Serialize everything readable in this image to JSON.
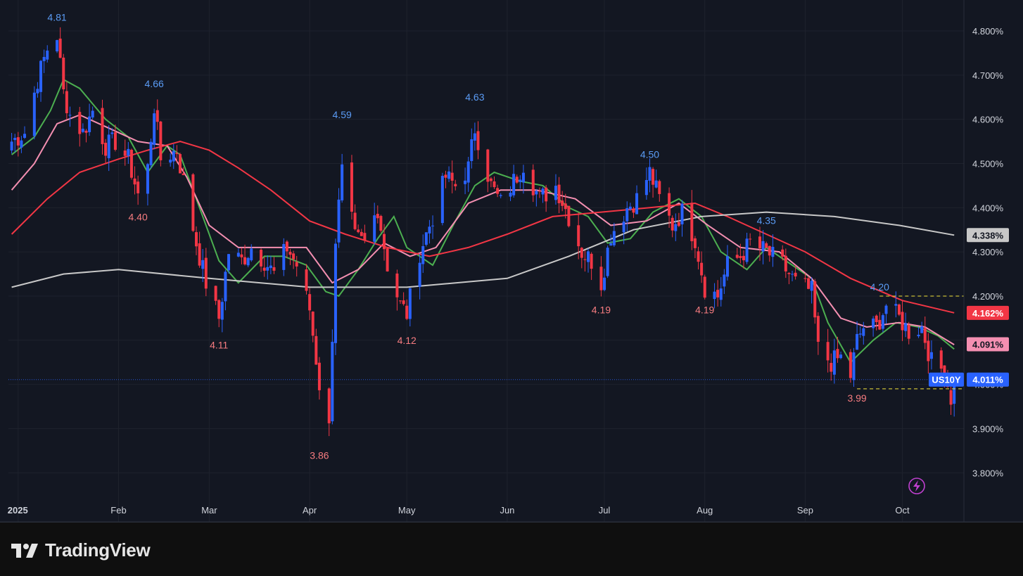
{
  "brand": {
    "name": "TradingView",
    "logo_icon": "tradingview-logo-icon"
  },
  "symbol": "US10Y",
  "last_price_label": "4.011%",
  "colors": {
    "background": "#131722",
    "grid": "#1e222d",
    "axis_text": "#d1d4dc",
    "up": "#2962ff",
    "down": "#f23645",
    "ma_fast": "#4caf50",
    "ma_mid": "#f48fb1",
    "ma_slow": "#f23645",
    "ma_long": "#c8c8c8",
    "high_label": "#5b9cf6",
    "low_label": "#f77c80",
    "level_line": "#f5e63b",
    "lightning": "#c040d0"
  },
  "chart_data": {
    "type": "candlestick",
    "y_unit": "%",
    "ylim": [
      3.74,
      4.87
    ],
    "y_ticks": [
      "4.800%",
      "4.700%",
      "4.600%",
      "4.500%",
      "4.400%",
      "4.300%",
      "4.200%",
      "4.100%",
      "4.000%",
      "3.900%",
      "3.800%"
    ],
    "y_tick_values": [
      4.8,
      4.7,
      4.6,
      4.5,
      4.4,
      4.3,
      4.2,
      4.1,
      4.0,
      3.9,
      3.8
    ],
    "x_ticks": [
      {
        "label": "2025",
        "date": "2025-01-01"
      },
      {
        "label": "Feb",
        "date": "2025-02-01"
      },
      {
        "label": "Mar",
        "date": "2025-03-01"
      },
      {
        "label": "Apr",
        "date": "2025-04-01"
      },
      {
        "label": "May",
        "date": "2025-05-01"
      },
      {
        "label": "Jun",
        "date": "2025-06-01"
      },
      {
        "label": "Jul",
        "date": "2025-07-01"
      },
      {
        "label": "Aug",
        "date": "2025-08-01"
      },
      {
        "label": "Sep",
        "date": "2025-09-01"
      },
      {
        "label": "Oct",
        "date": "2025-10-01"
      }
    ],
    "x_range": [
      "2024-12-29",
      "2025-10-20"
    ],
    "price_path": [
      [
        "2024-12-30",
        4.55
      ],
      [
        "2025-01-03",
        4.57
      ],
      [
        "2025-01-07",
        4.69
      ],
      [
        "2025-01-10",
        4.76
      ],
      [
        "2025-01-13",
        4.79
      ],
      [
        "2025-01-15",
        4.66
      ],
      [
        "2025-01-17",
        4.61
      ],
      [
        "2025-01-21",
        4.57
      ],
      [
        "2025-01-24",
        4.62
      ],
      [
        "2025-01-28",
        4.54
      ],
      [
        "2025-01-31",
        4.55
      ],
      [
        "2025-02-04",
        4.51
      ],
      [
        "2025-02-07",
        4.43
      ],
      [
        "2025-02-10",
        4.49
      ],
      [
        "2025-02-12",
        4.63
      ],
      [
        "2025-02-14",
        4.51
      ],
      [
        "2025-02-19",
        4.53
      ],
      [
        "2025-02-21",
        4.46
      ],
      [
        "2025-02-25",
        4.32
      ],
      [
        "2025-02-28",
        4.23
      ],
      [
        "2025-03-04",
        4.15
      ],
      [
        "2025-03-07",
        4.3
      ],
      [
        "2025-03-11",
        4.28
      ],
      [
        "2025-03-14",
        4.31
      ],
      [
        "2025-03-18",
        4.28
      ],
      [
        "2025-03-21",
        4.25
      ],
      [
        "2025-03-25",
        4.31
      ],
      [
        "2025-03-28",
        4.27
      ],
      [
        "2025-04-01",
        4.17
      ],
      [
        "2025-04-04",
        4.0
      ],
      [
        "2025-04-07",
        3.9
      ],
      [
        "2025-04-09",
        4.33
      ],
      [
        "2025-04-11",
        4.48
      ],
      [
        "2025-04-15",
        4.33
      ],
      [
        "2025-04-18",
        4.32
      ],
      [
        "2025-04-22",
        4.4
      ],
      [
        "2025-04-25",
        4.27
      ],
      [
        "2025-04-29",
        4.18
      ],
      [
        "2025-05-01",
        4.16
      ],
      [
        "2025-05-05",
        4.3
      ],
      [
        "2025-05-09",
        4.38
      ],
      [
        "2025-05-13",
        4.47
      ],
      [
        "2025-05-16",
        4.45
      ],
      [
        "2025-05-20",
        4.49
      ],
      [
        "2025-05-22",
        4.58
      ],
      [
        "2025-05-27",
        4.45
      ],
      [
        "2025-05-30",
        4.41
      ],
      [
        "2025-06-03",
        4.46
      ],
      [
        "2025-06-06",
        4.5
      ],
      [
        "2025-06-11",
        4.42
      ],
      [
        "2025-06-16",
        4.45
      ],
      [
        "2025-06-20",
        4.38
      ],
      [
        "2025-06-24",
        4.3
      ],
      [
        "2025-06-27",
        4.28
      ],
      [
        "2025-06-30",
        4.23
      ],
      [
        "2025-07-03",
        4.34
      ],
      [
        "2025-07-08",
        4.4
      ],
      [
        "2025-07-11",
        4.42
      ],
      [
        "2025-07-15",
        4.48
      ],
      [
        "2025-07-18",
        4.42
      ],
      [
        "2025-07-22",
        4.36
      ],
      [
        "2025-07-25",
        4.39
      ],
      [
        "2025-07-29",
        4.33
      ],
      [
        "2025-08-01",
        4.22
      ],
      [
        "2025-08-05",
        4.2
      ],
      [
        "2025-08-08",
        4.27
      ],
      [
        "2025-08-12",
        4.29
      ],
      [
        "2025-08-15",
        4.32
      ],
      [
        "2025-08-20",
        4.3
      ],
      [
        "2025-08-25",
        4.27
      ],
      [
        "2025-08-29",
        4.23
      ],
      [
        "2025-09-03",
        4.21
      ],
      [
        "2025-09-05",
        4.08
      ],
      [
        "2025-09-09",
        4.05
      ],
      [
        "2025-09-12",
        4.06
      ],
      [
        "2025-09-15",
        4.02
      ],
      [
        "2025-09-17",
        4.1
      ],
      [
        "2025-09-19",
        4.13
      ],
      [
        "2025-09-23",
        4.13
      ],
      [
        "2025-09-26",
        4.18
      ],
      [
        "2025-09-30",
        4.15
      ],
      [
        "2025-10-03",
        4.12
      ],
      [
        "2025-10-07",
        4.13
      ],
      [
        "2025-10-10",
        4.05
      ],
      [
        "2025-10-14",
        4.03
      ],
      [
        "2025-10-16",
        3.97
      ],
      [
        "2025-10-17",
        4.011
      ]
    ],
    "moving_averages": [
      {
        "key": "ma_fast",
        "points": [
          [
            "2024-12-30",
            4.52
          ],
          [
            "2025-01-06",
            4.56
          ],
          [
            "2025-01-11",
            4.62
          ],
          [
            "2025-01-15",
            4.69
          ],
          [
            "2025-01-20",
            4.67
          ],
          [
            "2025-01-28",
            4.6
          ],
          [
            "2025-02-04",
            4.56
          ],
          [
            "2025-02-10",
            4.48
          ],
          [
            "2025-02-16",
            4.54
          ],
          [
            "2025-02-20",
            4.52
          ],
          [
            "2025-02-26",
            4.4
          ],
          [
            "2025-03-04",
            4.28
          ],
          [
            "2025-03-10",
            4.23
          ],
          [
            "2025-03-18",
            4.29
          ],
          [
            "2025-03-24",
            4.29
          ],
          [
            "2025-03-31",
            4.27
          ],
          [
            "2025-04-06",
            4.21
          ],
          [
            "2025-04-10",
            4.2
          ],
          [
            "2025-04-16",
            4.26
          ],
          [
            "2025-04-22",
            4.33
          ],
          [
            "2025-04-27",
            4.38
          ],
          [
            "2025-05-01",
            4.31
          ],
          [
            "2025-05-09",
            4.27
          ],
          [
            "2025-05-16",
            4.37
          ],
          [
            "2025-05-22",
            4.45
          ],
          [
            "2025-05-28",
            4.48
          ],
          [
            "2025-06-05",
            4.46
          ],
          [
            "2025-06-12",
            4.45
          ],
          [
            "2025-06-20",
            4.4
          ],
          [
            "2025-06-26",
            4.38
          ],
          [
            "2025-07-02",
            4.32
          ],
          [
            "2025-07-09",
            4.33
          ],
          [
            "2025-07-16",
            4.39
          ],
          [
            "2025-07-24",
            4.42
          ],
          [
            "2025-07-31",
            4.38
          ],
          [
            "2025-08-06",
            4.3
          ],
          [
            "2025-08-14",
            4.26
          ],
          [
            "2025-08-20",
            4.31
          ],
          [
            "2025-08-28",
            4.27
          ],
          [
            "2025-09-03",
            4.24
          ],
          [
            "2025-09-08",
            4.14
          ],
          [
            "2025-09-15",
            4.05
          ],
          [
            "2025-09-22",
            4.1
          ],
          [
            "2025-09-29",
            4.14
          ],
          [
            "2025-10-06",
            4.13
          ],
          [
            "2025-10-12",
            4.11
          ],
          [
            "2025-10-17",
            4.08
          ]
        ]
      },
      {
        "key": "ma_mid",
        "points": [
          [
            "2024-12-30",
            4.44
          ],
          [
            "2025-01-06",
            4.5
          ],
          [
            "2025-01-13",
            4.59
          ],
          [
            "2025-01-20",
            4.61
          ],
          [
            "2025-01-29",
            4.58
          ],
          [
            "2025-02-07",
            4.55
          ],
          [
            "2025-02-16",
            4.54
          ],
          [
            "2025-02-22",
            4.47
          ],
          [
            "2025-03-01",
            4.36
          ],
          [
            "2025-03-10",
            4.31
          ],
          [
            "2025-03-20",
            4.31
          ],
          [
            "2025-03-31",
            4.31
          ],
          [
            "2025-04-08",
            4.23
          ],
          [
            "2025-04-16",
            4.26
          ],
          [
            "2025-04-24",
            4.32
          ],
          [
            "2025-05-02",
            4.29
          ],
          [
            "2025-05-10",
            4.31
          ],
          [
            "2025-05-20",
            4.41
          ],
          [
            "2025-05-30",
            4.44
          ],
          [
            "2025-06-10",
            4.44
          ],
          [
            "2025-06-22",
            4.42
          ],
          [
            "2025-07-03",
            4.36
          ],
          [
            "2025-07-14",
            4.37
          ],
          [
            "2025-07-24",
            4.41
          ],
          [
            "2025-08-02",
            4.36
          ],
          [
            "2025-08-12",
            4.31
          ],
          [
            "2025-08-24",
            4.3
          ],
          [
            "2025-09-03",
            4.24
          ],
          [
            "2025-09-12",
            4.15
          ],
          [
            "2025-09-20",
            4.13
          ],
          [
            "2025-09-30",
            4.14
          ],
          [
            "2025-10-08",
            4.13
          ],
          [
            "2025-10-17",
            4.09
          ]
        ]
      },
      {
        "key": "ma_slow",
        "points": [
          [
            "2024-12-30",
            4.34
          ],
          [
            "2025-01-10",
            4.42
          ],
          [
            "2025-01-20",
            4.48
          ],
          [
            "2025-02-01",
            4.51
          ],
          [
            "2025-02-10",
            4.53
          ],
          [
            "2025-02-20",
            4.55
          ],
          [
            "2025-03-01",
            4.53
          ],
          [
            "2025-03-10",
            4.49
          ],
          [
            "2025-03-20",
            4.44
          ],
          [
            "2025-04-01",
            4.37
          ],
          [
            "2025-04-12",
            4.34
          ],
          [
            "2025-04-25",
            4.31
          ],
          [
            "2025-05-08",
            4.29
          ],
          [
            "2025-05-20",
            4.31
          ],
          [
            "2025-06-01",
            4.34
          ],
          [
            "2025-06-15",
            4.38
          ],
          [
            "2025-06-30",
            4.39
          ],
          [
            "2025-07-15",
            4.4
          ],
          [
            "2025-07-29",
            4.41
          ],
          [
            "2025-08-08",
            4.38
          ],
          [
            "2025-08-20",
            4.34
          ],
          [
            "2025-09-01",
            4.3
          ],
          [
            "2025-09-15",
            4.24
          ],
          [
            "2025-10-01",
            4.19
          ],
          [
            "2025-10-17",
            4.162
          ]
        ]
      },
      {
        "key": "ma_long",
        "points": [
          [
            "2024-12-30",
            4.22
          ],
          [
            "2025-01-15",
            4.25
          ],
          [
            "2025-02-01",
            4.26
          ],
          [
            "2025-03-01",
            4.24
          ],
          [
            "2025-04-01",
            4.22
          ],
          [
            "2025-05-01",
            4.22
          ],
          [
            "2025-06-01",
            4.24
          ],
          [
            "2025-06-20",
            4.29
          ],
          [
            "2025-07-10",
            4.35
          ],
          [
            "2025-07-31",
            4.38
          ],
          [
            "2025-08-20",
            4.39
          ],
          [
            "2025-09-10",
            4.38
          ],
          [
            "2025-09-30",
            4.36
          ],
          [
            "2025-10-17",
            4.338
          ]
        ]
      }
    ],
    "annotations": [
      {
        "text": "4.81",
        "date": "2025-01-13",
        "value": 4.81,
        "kind": "high"
      },
      {
        "text": "4.66",
        "date": "2025-02-12",
        "value": 4.66,
        "kind": "high"
      },
      {
        "text": "4.40",
        "date": "2025-02-07",
        "value": 4.4,
        "kind": "low"
      },
      {
        "text": "4.11",
        "date": "2025-03-04",
        "value": 4.11,
        "kind": "low"
      },
      {
        "text": "4.59",
        "date": "2025-04-11",
        "value": 4.59,
        "kind": "high"
      },
      {
        "text": "3.86",
        "date": "2025-04-04",
        "value": 3.86,
        "kind": "low"
      },
      {
        "text": "4.12",
        "date": "2025-05-01",
        "value": 4.12,
        "kind": "low"
      },
      {
        "text": "4.63",
        "date": "2025-05-22",
        "value": 4.63,
        "kind": "high"
      },
      {
        "text": "4.19",
        "date": "2025-06-30",
        "value": 4.19,
        "kind": "low"
      },
      {
        "text": "4.50",
        "date": "2025-07-15",
        "value": 4.5,
        "kind": "high"
      },
      {
        "text": "4.19",
        "date": "2025-08-01",
        "value": 4.19,
        "kind": "low"
      },
      {
        "text": "4.35",
        "date": "2025-08-20",
        "value": 4.35,
        "kind": "high"
      },
      {
        "text": "4.20",
        "date": "2025-09-24",
        "value": 4.2,
        "kind": "high"
      },
      {
        "text": "3.99",
        "date": "2025-09-17",
        "value": 3.99,
        "kind": "low"
      }
    ],
    "level_lines": [
      {
        "from": "2025-09-24",
        "to": "2025-10-20",
        "value": 4.2
      },
      {
        "from": "2025-09-17",
        "to": "2025-10-20",
        "value": 3.99
      }
    ],
    "price_tags": [
      {
        "text": "4.338%",
        "value": 4.338,
        "key": "ma_long"
      },
      {
        "text": "4.162%",
        "value": 4.162,
        "key": "ma_slow"
      },
      {
        "text": "4.091%",
        "value": 4.091,
        "key": "ma_mid"
      },
      {
        "text": "4.011%",
        "value": 4.011,
        "key": "up"
      }
    ],
    "last_value": 4.011
  }
}
